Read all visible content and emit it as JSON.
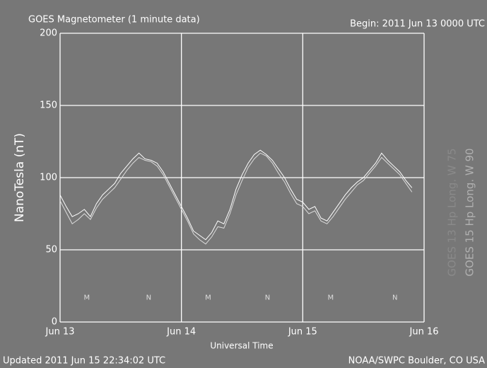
{
  "chart_data": {
    "type": "line",
    "title": "GOES Magnetometer (1 minute data)",
    "subtitle": "Begin:  2011 Jun 13 0000 UTC",
    "y_label": "NanoTesla (nT)",
    "x_label": "Universal Time",
    "footer_left": "Updated 2011 Jun 15 22:34:02 UTC",
    "footer_right": "NOAA/SWPC Boulder, CO USA",
    "xlim": [
      0,
      3
    ],
    "xticks": [
      {
        "value": 0,
        "label": "Jun 13"
      },
      {
        "value": 1,
        "label": "Jun 14"
      },
      {
        "value": 2,
        "label": "Jun 15"
      },
      {
        "value": 3,
        "label": "Jun 16"
      }
    ],
    "ylim": [
      0,
      200
    ],
    "yticks": [
      0,
      50,
      100,
      150,
      200
    ],
    "grid": true,
    "annotations": [
      {
        "text": "M",
        "x": 0.22,
        "y": 17
      },
      {
        "text": "N",
        "x": 0.73,
        "y": 17
      },
      {
        "text": "M",
        "x": 1.22,
        "y": 17
      },
      {
        "text": "N",
        "x": 1.71,
        "y": 17
      },
      {
        "text": "M",
        "x": 2.23,
        "y": 17
      },
      {
        "text": "N",
        "x": 2.76,
        "y": 17
      }
    ],
    "x": [
      0,
      0.05,
      0.1,
      0.15,
      0.2,
      0.25,
      0.3,
      0.35,
      0.4,
      0.45,
      0.5,
      0.55,
      0.6,
      0.65,
      0.7,
      0.75,
      0.8,
      0.85,
      0.9,
      0.95,
      1,
      1.05,
      1.1,
      1.15,
      1.2,
      1.25,
      1.3,
      1.35,
      1.4,
      1.45,
      1.5,
      1.55,
      1.6,
      1.65,
      1.7,
      1.75,
      1.8,
      1.85,
      1.9,
      1.95,
      2,
      2.05,
      2.1,
      2.15,
      2.2,
      2.25,
      2.3,
      2.35,
      2.4,
      2.45,
      2.5,
      2.55,
      2.6,
      2.65,
      2.7,
      2.75,
      2.8,
      2.85,
      2.9
    ],
    "series": [
      {
        "name": "GOES 15 Hp Long. W 90",
        "color": "#ffffff",
        "values": [
          88,
          80,
          73,
          75,
          78,
          73,
          82,
          88,
          92,
          96,
          103,
          108,
          113,
          117,
          113,
          112,
          110,
          104,
          96,
          88,
          80,
          72,
          63,
          60,
          57,
          62,
          70,
          68,
          78,
          92,
          102,
          110,
          116,
          119,
          116,
          112,
          106,
          100,
          92,
          85,
          83,
          78,
          80,
          72,
          70,
          76,
          82,
          88,
          93,
          97,
          100,
          105,
          110,
          117,
          112,
          108,
          104,
          98,
          93
        ]
      },
      {
        "name": "GOES 13 Hp Long. W 75",
        "color": "#dcdcdc",
        "values": [
          84,
          76,
          68,
          71,
          75,
          71,
          79,
          85,
          89,
          93,
          99,
          105,
          110,
          114,
          112,
          111,
          108,
          102,
          94,
          86,
          78,
          70,
          61,
          57,
          54,
          59,
          66,
          65,
          75,
          88,
          98,
          107,
          113,
          117,
          115,
          110,
          103,
          97,
          89,
          82,
          80,
          75,
          77,
          70,
          68,
          73,
          79,
          85,
          90,
          95,
          98,
          103,
          108,
          114,
          110,
          106,
          102,
          96,
          90
        ]
      }
    ]
  }
}
